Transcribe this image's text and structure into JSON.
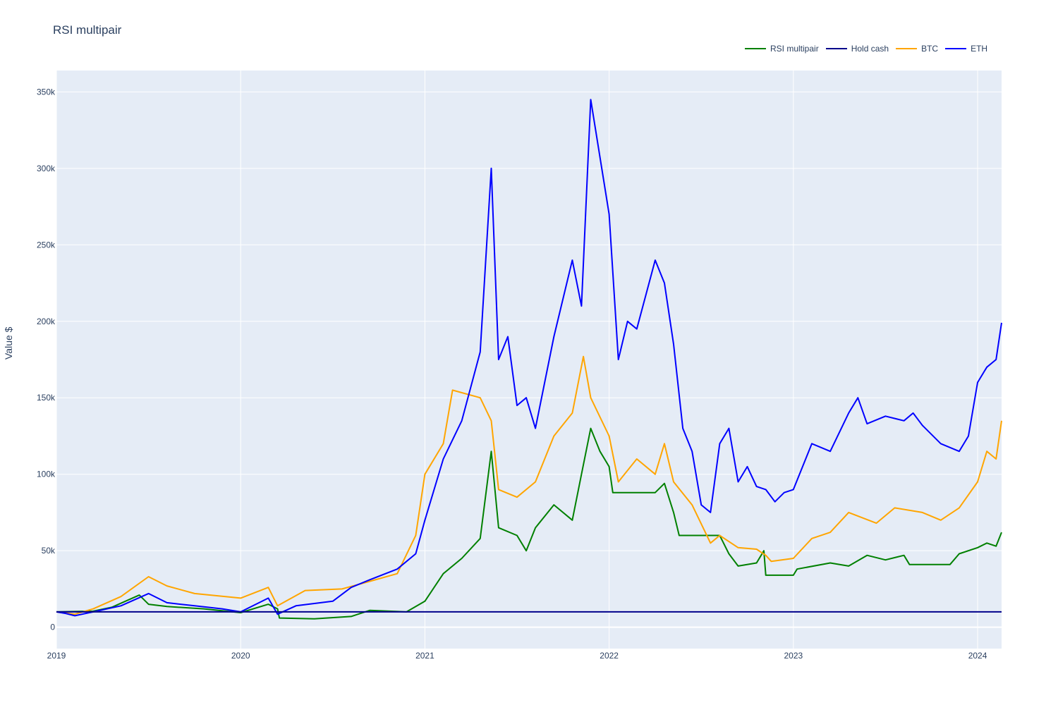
{
  "chart_data": {
    "type": "line",
    "title": "RSI multipair",
    "ylabel": "Value $",
    "xlabel": "",
    "x_ticks": [
      "2019",
      "2020",
      "2021",
      "2022",
      "2023",
      "2024"
    ],
    "y_ticks": [
      "0",
      "50k",
      "100k",
      "150k",
      "200k",
      "250k",
      "300k",
      "350k"
    ],
    "ylim": [
      -14000,
      364000
    ],
    "xlim": [
      2019.0,
      2024.13
    ],
    "grid": true,
    "legend_position": "top-right",
    "series": [
      {
        "name": "RSI multipair",
        "color": "#008000",
        "x": [
          2019.0,
          2019.2,
          2019.3,
          2019.45,
          2019.5,
          2019.6,
          2019.8,
          2020.0,
          2020.15,
          2020.2,
          2020.21,
          2020.4,
          2020.6,
          2020.7,
          2020.9,
          2021.0,
          2021.1,
          2021.2,
          2021.3,
          2021.36,
          2021.4,
          2021.5,
          2021.55,
          2021.6,
          2021.7,
          2021.8,
          2021.85,
          2021.9,
          2021.95,
          2022.0,
          2022.02,
          2022.25,
          2022.3,
          2022.35,
          2022.38,
          2022.55,
          2022.6,
          2022.65,
          2022.7,
          2022.8,
          2022.84,
          2022.85,
          2023.0,
          2023.02,
          2023.2,
          2023.3,
          2023.4,
          2023.5,
          2023.6,
          2023.63,
          2023.85,
          2023.9,
          2024.0,
          2024.05,
          2024.1,
          2024.13
        ],
        "y": [
          10000,
          10500,
          13000,
          21000,
          15000,
          13500,
          12000,
          9500,
          15000,
          12000,
          6000,
          5500,
          7000,
          11000,
          10000,
          17000,
          35000,
          45000,
          58000,
          115000,
          65000,
          60000,
          50000,
          65000,
          80000,
          70000,
          100000,
          130000,
          115000,
          105000,
          88000,
          88000,
          94000,
          75000,
          60000,
          60000,
          60000,
          48000,
          40000,
          42000,
          50000,
          34000,
          34000,
          38000,
          42000,
          40000,
          47000,
          44000,
          47000,
          41000,
          41000,
          48000,
          52000,
          55000,
          53000,
          62000
        ]
      },
      {
        "name": "Hold cash",
        "color": "#00008b",
        "x": [
          2019.0,
          2024.13
        ],
        "y": [
          10000,
          10000
        ]
      },
      {
        "name": "BTC",
        "color": "#ffa500",
        "x": [
          2019.0,
          2019.1,
          2019.2,
          2019.35,
          2019.5,
          2019.6,
          2019.75,
          2020.0,
          2020.15,
          2020.2,
          2020.35,
          2020.55,
          2020.7,
          2020.85,
          2020.95,
          2021.0,
          2021.1,
          2021.15,
          2021.3,
          2021.36,
          2021.4,
          2021.5,
          2021.6,
          2021.7,
          2021.8,
          2021.86,
          2021.9,
          2022.0,
          2022.05,
          2022.15,
          2022.25,
          2022.3,
          2022.35,
          2022.45,
          2022.55,
          2022.6,
          2022.7,
          2022.8,
          2022.85,
          2022.88,
          2023.0,
          2023.1,
          2023.2,
          2023.3,
          2023.45,
          2023.55,
          2023.7,
          2023.8,
          2023.9,
          2024.0,
          2024.05,
          2024.1,
          2024.13
        ],
        "y": [
          10000,
          8500,
          12000,
          20000,
          33000,
          27000,
          22000,
          19000,
          26000,
          14000,
          24000,
          25000,
          30000,
          35000,
          60000,
          100000,
          120000,
          155000,
          150000,
          135000,
          90000,
          85000,
          95000,
          125000,
          140000,
          177000,
          150000,
          125000,
          95000,
          110000,
          100000,
          120000,
          95000,
          80000,
          55000,
          60000,
          52000,
          51000,
          47000,
          43000,
          45000,
          58000,
          62000,
          75000,
          68000,
          78000,
          75000,
          70000,
          78000,
          95000,
          115000,
          110000,
          135000
        ]
      },
      {
        "name": "ETH",
        "color": "#0000ff",
        "x": [
          2019.0,
          2019.05,
          2019.1,
          2019.2,
          2019.35,
          2019.5,
          2019.6,
          2019.75,
          2019.9,
          2020.0,
          2020.15,
          2020.2,
          2020.3,
          2020.5,
          2020.6,
          2020.7,
          2020.85,
          2020.95,
          2021.0,
          2021.1,
          2021.2,
          2021.3,
          2021.36,
          2021.4,
          2021.45,
          2021.5,
          2021.55,
          2021.6,
          2021.7,
          2021.8,
          2021.85,
          2021.9,
          2022.0,
          2022.05,
          2022.1,
          2022.15,
          2022.25,
          2022.3,
          2022.35,
          2022.4,
          2022.45,
          2022.5,
          2022.55,
          2022.6,
          2022.65,
          2022.7,
          2022.75,
          2022.8,
          2022.85,
          2022.9,
          2022.95,
          2023.0,
          2023.1,
          2023.2,
          2023.3,
          2023.35,
          2023.4,
          2023.5,
          2023.6,
          2023.65,
          2023.7,
          2023.8,
          2023.9,
          2023.95,
          2024.0,
          2024.05,
          2024.1,
          2024.13
        ],
        "y": [
          10000,
          9000,
          7500,
          10000,
          14000,
          22000,
          16000,
          14000,
          12000,
          10000,
          19000,
          8500,
          14000,
          17000,
          26000,
          31000,
          38000,
          48000,
          70000,
          110000,
          135000,
          180000,
          300000,
          175000,
          190000,
          145000,
          150000,
          130000,
          190000,
          240000,
          210000,
          345000,
          270000,
          175000,
          200000,
          195000,
          240000,
          225000,
          185000,
          130000,
          115000,
          80000,
          75000,
          120000,
          130000,
          95000,
          105000,
          92000,
          90000,
          82000,
          88000,
          90000,
          120000,
          115000,
          140000,
          150000,
          133000,
          138000,
          135000,
          140000,
          132000,
          120000,
          115000,
          125000,
          160000,
          170000,
          175000,
          199000
        ]
      }
    ]
  }
}
